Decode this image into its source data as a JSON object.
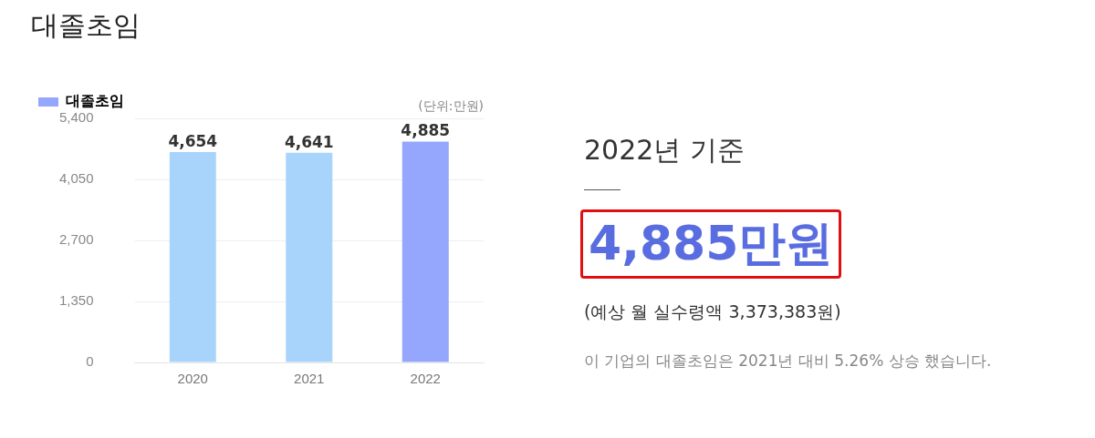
{
  "chart_data": {
    "type": "bar",
    "title": "대졸초임",
    "categories": [
      "2020",
      "2021",
      "2022"
    ],
    "series": [
      {
        "name": "대졸초임",
        "color": "#94a7fc",
        "colors": [
          "#a8d4fc",
          "#a8d4fc",
          "#94a7fc"
        ],
        "values": [
          4654,
          4641,
          4885
        ],
        "value_labels": [
          "4,654",
          "4,641",
          "4,885"
        ]
      }
    ],
    "ylim": [
      0,
      5400
    ],
    "yticks": [
      0,
      {
        "value": 1350,
        "label": "1,350"
      },
      {
        "value": 2700,
        "label": "2,700"
      },
      {
        "value": 4050,
        "label": "4,050"
      },
      {
        "value": 5400,
        "label": "5,400"
      }
    ],
    "grid": "y",
    "legend": "top left",
    "annotations": [
      "(단위:만원)",
      "2022년 기준",
      "4,885만원",
      "(예상 월 실수령액 3,373,383원)",
      "이 기업의 대졸초임은 2021년 대비 5.26% 상승 했습니다."
    ]
  }
}
